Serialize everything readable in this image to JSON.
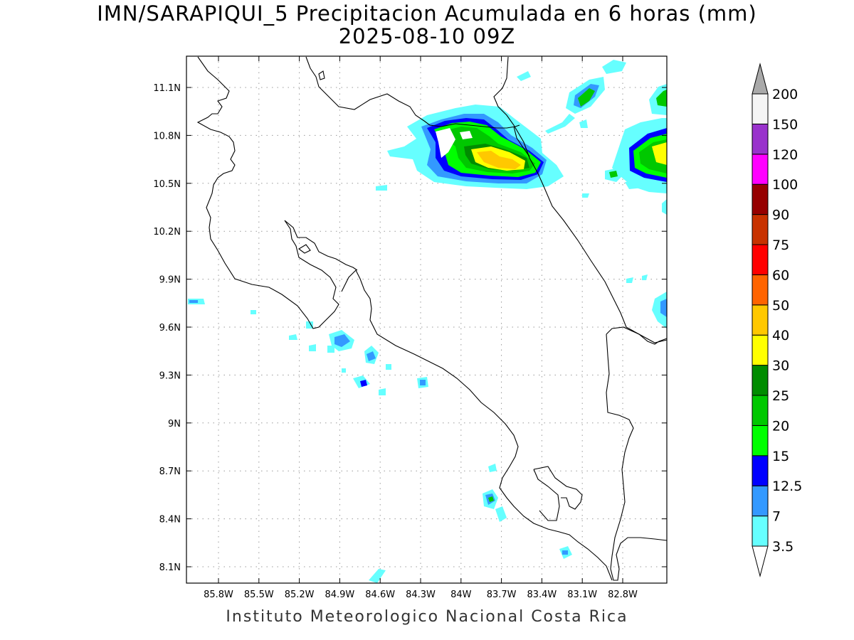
{
  "title": {
    "line1": "IMN/SARAPIQUI_5 Precipitacion Acumulada en 6 horas (mm)",
    "line2": "2025-08-10 09Z"
  },
  "credit": "Instituto Meteorologico Nacional Costa Rica",
  "map": {
    "lon_range": [
      -86.05,
      -82.6
    ],
    "lat_range": [
      8.0,
      11.3
    ],
    "lat_ticks": [
      "11.1N",
      "10.8N",
      "10.5N",
      "10.2N",
      "9.9N",
      "9.6N",
      "9.3N",
      "9N",
      "8.7N",
      "8.4N",
      "8.1N"
    ],
    "lon_ticks": [
      "85.8W",
      "85.5W",
      "85.2W",
      "84.9W",
      "84.6W",
      "84.3W",
      "84W",
      "83.7W",
      "83.4W",
      "83.1W",
      "82.8W"
    ],
    "grid": true
  },
  "colorbar": {
    "labels": [
      "3.5",
      "7",
      "12.5",
      "15",
      "20",
      "25",
      "30",
      "40",
      "50",
      "60",
      "75",
      "90",
      "100",
      "120",
      "150",
      "200"
    ],
    "colors": [
      "#ffffff",
      "#66ffff",
      "#3399ff",
      "#0000ff",
      "#00ff00",
      "#00c800",
      "#008c00",
      "#ffff00",
      "#ffc800",
      "#ff6400",
      "#ff0000",
      "#c83200",
      "#960000",
      "#ff00ff",
      "#9932cc",
      "#f5f5f5",
      "#a9a9a9"
    ]
  }
}
